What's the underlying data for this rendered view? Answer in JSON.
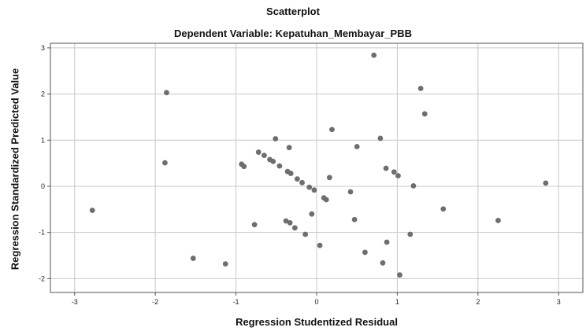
{
  "chart_data": {
    "type": "scatter",
    "title": "Scatterplot",
    "subtitle": "Dependent Variable: Kepatuhan_Membayar_PBB",
    "xlabel": "Regression Studentized Residual",
    "ylabel": "Regression Standardized Predicted Value",
    "xlim": [
      -3.3,
      3.3
    ],
    "ylim": [
      -2.3,
      3.1
    ],
    "xticks": [
      -3,
      -2,
      -1,
      0,
      1,
      2,
      3
    ],
    "yticks": [
      -2,
      -1,
      0,
      1,
      2,
      3
    ],
    "grid": true,
    "marker_color": "#6e6e6e",
    "points": [
      {
        "x": -2.78,
        "y": -0.52
      },
      {
        "x": -1.86,
        "y": 2.03
      },
      {
        "x": -1.88,
        "y": 0.51
      },
      {
        "x": -1.53,
        "y": -1.56
      },
      {
        "x": -1.13,
        "y": -1.68
      },
      {
        "x": -0.93,
        "y": 0.48
      },
      {
        "x": -0.9,
        "y": 0.43
      },
      {
        "x": -0.77,
        "y": -0.83
      },
      {
        "x": -0.72,
        "y": 0.74
      },
      {
        "x": -0.65,
        "y": 0.67
      },
      {
        "x": -0.58,
        "y": 0.58
      },
      {
        "x": -0.54,
        "y": 0.54
      },
      {
        "x": -0.51,
        "y": 1.03
      },
      {
        "x": -0.46,
        "y": 0.44
      },
      {
        "x": -0.38,
        "y": -0.75
      },
      {
        "x": -0.36,
        "y": 0.32
      },
      {
        "x": -0.34,
        "y": 0.84
      },
      {
        "x": -0.33,
        "y": -0.79
      },
      {
        "x": -0.32,
        "y": 0.28
      },
      {
        "x": -0.27,
        "y": -0.9
      },
      {
        "x": -0.24,
        "y": 0.16
      },
      {
        "x": -0.18,
        "y": 0.08
      },
      {
        "x": -0.14,
        "y": -1.04
      },
      {
        "x": -0.09,
        "y": -0.02
      },
      {
        "x": -0.06,
        "y": -0.6
      },
      {
        "x": -0.03,
        "y": -0.08
      },
      {
        "x": 0.04,
        "y": -1.28
      },
      {
        "x": 0.09,
        "y": -0.25
      },
      {
        "x": 0.12,
        "y": -0.29
      },
      {
        "x": 0.16,
        "y": 0.19
      },
      {
        "x": 0.19,
        "y": 1.23
      },
      {
        "x": 0.42,
        "y": -0.12
      },
      {
        "x": 0.47,
        "y": -0.72
      },
      {
        "x": 0.5,
        "y": 0.86
      },
      {
        "x": 0.6,
        "y": -1.43
      },
      {
        "x": 0.71,
        "y": 2.84
      },
      {
        "x": 0.79,
        "y": 1.04
      },
      {
        "x": 0.82,
        "y": -1.66
      },
      {
        "x": 0.86,
        "y": 0.39
      },
      {
        "x": 0.87,
        "y": -1.21
      },
      {
        "x": 0.96,
        "y": 0.31
      },
      {
        "x": 1.01,
        "y": 0.23
      },
      {
        "x": 1.03,
        "y": -1.92
      },
      {
        "x": 1.16,
        "y": -1.04
      },
      {
        "x": 1.2,
        "y": 0.01
      },
      {
        "x": 1.29,
        "y": 2.12
      },
      {
        "x": 1.34,
        "y": 1.57
      },
      {
        "x": 1.57,
        "y": -0.49
      },
      {
        "x": 2.25,
        "y": -0.74
      },
      {
        "x": 2.84,
        "y": 0.07
      }
    ]
  }
}
